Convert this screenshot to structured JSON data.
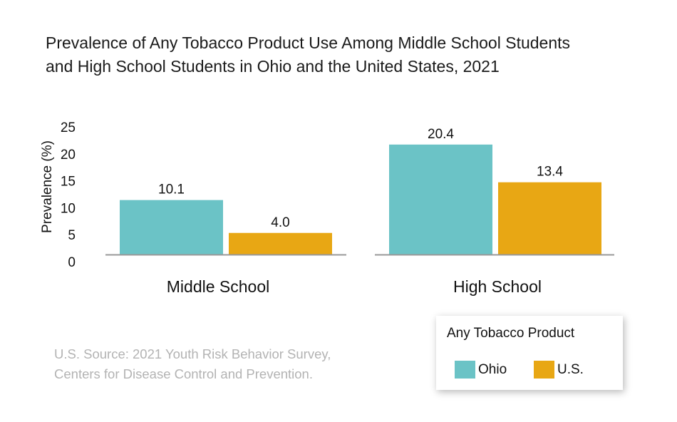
{
  "title_lines": [
    "Prevalence of Any Tobacco Product Use Among Middle School Students",
    "and High School Students in Ohio and the United States, 2021"
  ],
  "source_lines": [
    "U.S. Source: 2021 Youth Risk Behavior Survey,",
    "Centers for Disease Control and Prevention."
  ],
  "legend": {
    "title": "Any Tobacco Product",
    "items": [
      {
        "label": "Ohio",
        "color": "#6bc3c6"
      },
      {
        "label": "U.S.",
        "color": "#e8a714"
      }
    ]
  },
  "colors": {
    "ohio": "#6bc3c6",
    "us": "#e8a714",
    "axis": "#999999"
  },
  "chart_data": {
    "type": "bar",
    "title": "Prevalence of Any Tobacco Product Use Among Middle School Students and High School Students in Ohio and the United States, 2021",
    "categories": [
      "Middle School",
      "High School"
    ],
    "series": [
      {
        "name": "Ohio",
        "values": [
          10.1,
          20.4
        ],
        "labels": [
          "10.1",
          "20.4"
        ],
        "color": "#6bc3c6"
      },
      {
        "name": "U.S.",
        "values": [
          4.0,
          13.4
        ],
        "labels": [
          "4.0",
          "13.4"
        ],
        "color": "#e8a714"
      }
    ],
    "xlabel": "",
    "ylabel": "Prevalence (%)",
    "ylim": [
      0,
      25
    ],
    "yticks": [
      0,
      5,
      10,
      15,
      20,
      25
    ],
    "grid": false,
    "legend_position": "bottom-right"
  }
}
